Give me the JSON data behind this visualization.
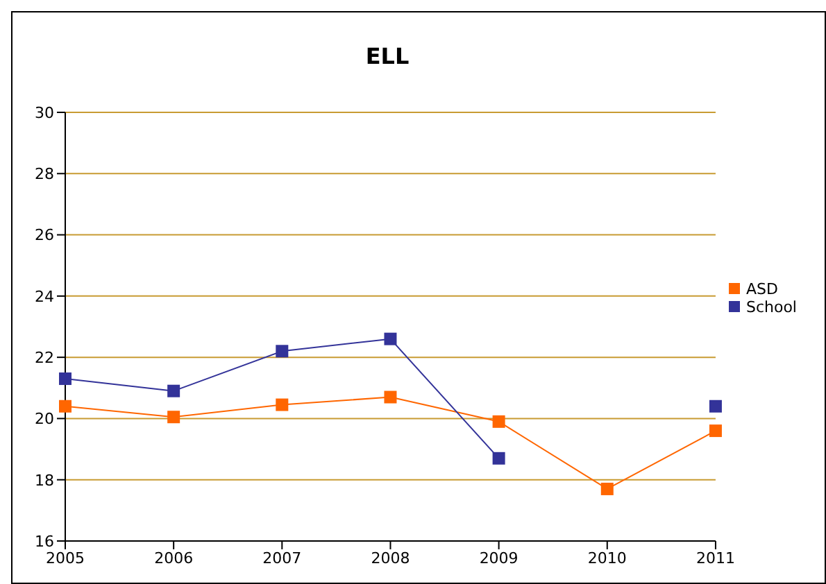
{
  "chart_data": {
    "type": "line",
    "title": "ELL",
    "categories": [
      "2005",
      "2006",
      "2007",
      "2008",
      "2009",
      "2010",
      "2011"
    ],
    "series": [
      {
        "name": "ASD",
        "color": "#ff6600",
        "values": [
          20.4,
          20.05,
          20.45,
          20.7,
          19.9,
          17.7,
          19.6
        ]
      },
      {
        "name": "School",
        "color": "#333399",
        "values": [
          21.3,
          20.9,
          22.2,
          22.6,
          18.7,
          null,
          20.4
        ]
      }
    ],
    "ylim": [
      16,
      30
    ],
    "yticks": [
      16,
      18,
      20,
      22,
      24,
      26,
      28,
      30
    ],
    "grid": "y",
    "legend": "right",
    "marker": "square",
    "line_style": "solid"
  }
}
